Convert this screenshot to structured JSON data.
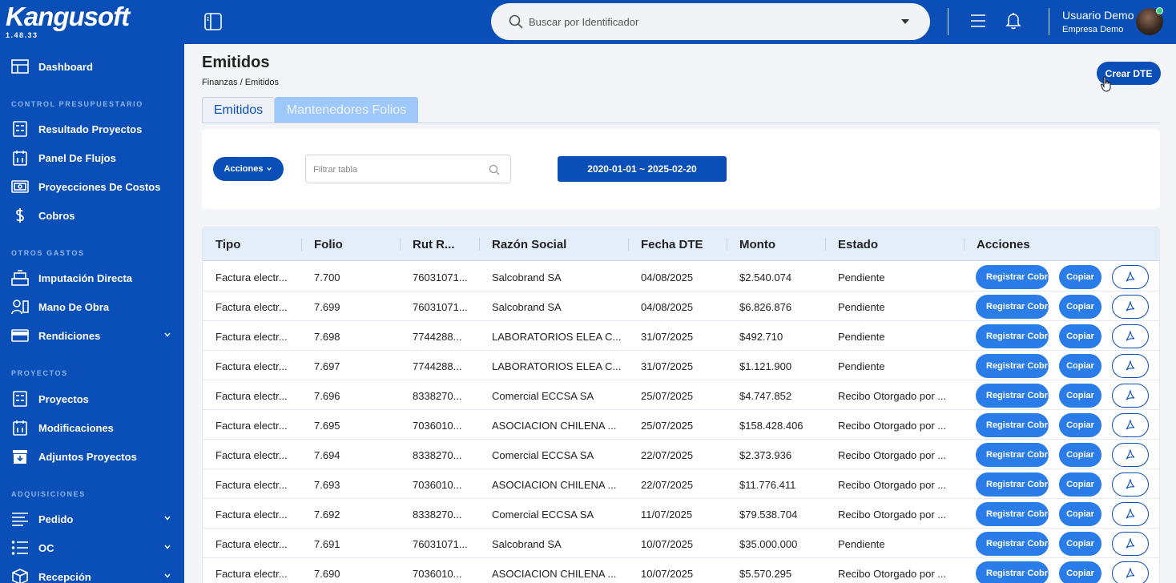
{
  "app": {
    "logo": "Kangusoft",
    "version": "1.48.33"
  },
  "sidebar": {
    "dashboard": "Dashboard",
    "sections": {
      "control": "CONTROL PRESUPUESTARIO",
      "otros": "OTROS GASTOS",
      "proyectos": "PROYECTOS",
      "adquisiciones": "ADQUISICIONES"
    },
    "items": {
      "resultado": "Resultado Proyectos",
      "panel_flujos": "Panel De Flujos",
      "proyecciones": "Proyecciones De Costos",
      "cobros": "Cobros",
      "imputacion": "Imputación Directa",
      "mano_obra": "Mano De Obra",
      "rendiciones": "Rendiciones",
      "proyectos": "Proyectos",
      "modificaciones": "Modificaciones",
      "adjuntos": "Adjuntos Proyectos",
      "pedido": "Pedido",
      "oc": "OC",
      "recepcion": "Recepción"
    }
  },
  "topbar": {
    "search_placeholder": "Buscar por Identificador",
    "user_name": "Usuario Demo",
    "user_company": "Empresa Demo"
  },
  "page": {
    "title": "Emitidos",
    "breadcrumb": "Finanzas / Emitidos",
    "create_button": "Crear DTE",
    "tabs": [
      "Emitidos",
      "Mantenedores Folios"
    ]
  },
  "filters": {
    "actions_label": "Acciones",
    "filter_placeholder": "Filtrar tabla",
    "date_range": "2020-01-01 ~ 2025-02-20"
  },
  "table": {
    "columns": [
      "Tipo",
      "Folio",
      "Rut R...",
      "Razón Social",
      "Fecha DTE",
      "Monto",
      "Estado",
      "Acciones"
    ],
    "action_labels": {
      "register": "Registrar Cobro",
      "copy": "Copiar"
    },
    "rows": [
      [
        "Factura electr...",
        "7.700",
        "76031071...",
        "Salcobrand SA",
        "04/08/2025",
        "$2.540.074",
        "Pendiente"
      ],
      [
        "Factura electr...",
        "7.699",
        "76031071...",
        "Salcobrand SA",
        "04/08/2025",
        "$6.826.876",
        "Pendiente"
      ],
      [
        "Factura electr...",
        "7.698",
        "7744288...",
        "LABORATORIOS ELEA C...",
        "31/07/2025",
        "$492.710",
        "Pendiente"
      ],
      [
        "Factura electr...",
        "7.697",
        "7744288...",
        "LABORATORIOS ELEA C...",
        "31/07/2025",
        "$1.121.900",
        "Pendiente"
      ],
      [
        "Factura electr...",
        "7.696",
        "8338270...",
        "Comercial ECCSA SA",
        "25/07/2025",
        "$4.747.852",
        "Recibo Otorgado por ..."
      ],
      [
        "Factura electr...",
        "7.695",
        "7036010...",
        "ASOCIACION CHILENA ...",
        "25/07/2025",
        "$158.428.406",
        "Recibo Otorgado por ..."
      ],
      [
        "Factura electr...",
        "7.694",
        "8338270...",
        "Comercial ECCSA SA",
        "22/07/2025",
        "$2.373.936",
        "Recibo Otorgado por ..."
      ],
      [
        "Factura electr...",
        "7.693",
        "7036010...",
        "ASOCIACION CHILENA ...",
        "22/07/2025",
        "$11.776.411",
        "Recibo Otorgado por ..."
      ],
      [
        "Factura electr...",
        "7.692",
        "8338270...",
        "Comercial ECCSA SA",
        "11/07/2025",
        "$79.538.704",
        "Recibo Otorgado por ..."
      ],
      [
        "Factura electr...",
        "7.691",
        "76031071...",
        "Salcobrand SA",
        "10/07/2025",
        "$35.000.000",
        "Pendiente"
      ],
      [
        "Factura electr...",
        "7.690",
        "7036010...",
        "ASOCIACION CHILENA ...",
        "10/07/2025",
        "$5.570.295",
        "Recibo Otorgado por ..."
      ]
    ]
  }
}
